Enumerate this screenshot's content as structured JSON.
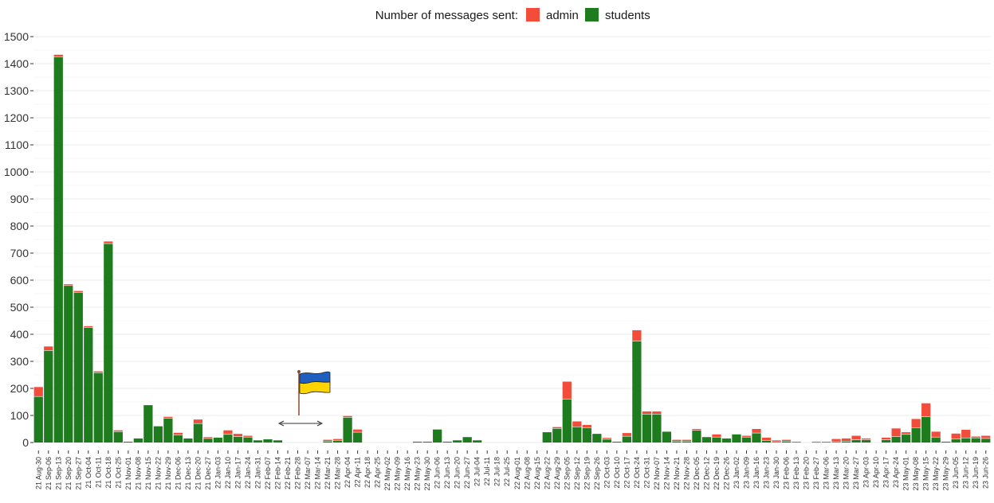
{
  "chart_data": {
    "type": "bar",
    "stacked": true,
    "legend_title": "Number of messages sent:",
    "legend_position": "top",
    "ylim": [
      0,
      1500
    ],
    "yticks": [
      0,
      100,
      200,
      300,
      400,
      500,
      600,
      700,
      800,
      900,
      1000,
      1100,
      1200,
      1300,
      1400,
      1500
    ],
    "colors": {
      "admin": "#f44c3a",
      "students": "#1e7b1e"
    },
    "annotation_icon": "ukraine-flag-icon",
    "categories": [
      "21 Aug-30",
      "21 Sep-06",
      "21 Sep-13",
      "21 Sep-20",
      "21 Sep-27",
      "21 Oct-04",
      "21 Oct-11",
      "21 Oct-18",
      "21 Oct-25",
      "21 Nov-01",
      "21 Nov-08",
      "21 Nov-15",
      "21 Nov-22",
      "21 Nov-29",
      "21 Dec-06",
      "21 Dec-13",
      "21 Dec-20",
      "21 Dec-27",
      "22 Jan-03",
      "22 Jan-10",
      "22 Jan-17",
      "22 Jan-24",
      "22 Jan-31",
      "22 Feb-07",
      "22 Feb-14",
      "22 Feb-21",
      "22 Feb-28",
      "22 Mar-07",
      "22 Mar-14",
      "22 Mar-21",
      "22 Mar-28",
      "22 Apr-04",
      "22 Apr-11",
      "22 Apr-18",
      "22 Apr-25",
      "22 May-02",
      "22 May-09",
      "22 May-16",
      "22 May-23",
      "22 May-30",
      "22 Jun-06",
      "22 Jun-13",
      "22 Jun-20",
      "22 Jun-27",
      "22 Jul-04",
      "22 Jul-11",
      "22 Jul-18",
      "22 Jul-25",
      "22 Aug-01",
      "22 Aug-08",
      "22 Aug-15",
      "22 Aug-22",
      "22 Aug-29",
      "22 Sep-05",
      "22 Sep-12",
      "22 Sep-19",
      "22 Sep-26",
      "22 Oct-03",
      "22 Oct-10",
      "22 Oct-17",
      "22 Oct-24",
      "22 Oct-31",
      "22 Nov-07",
      "22 Nov-14",
      "22 Nov-21",
      "22 Nov-28",
      "22 Dec-05",
      "22 Dec-12",
      "22 Dec-19",
      "22 Dec-26",
      "23 Jan-02",
      "23 Jan-09",
      "23 Jan-16",
      "23 Jan-23",
      "23 Jan-30",
      "23 Feb-06",
      "23 Feb-13",
      "23 Feb-20",
      "23 Feb-27",
      "23 Mar-06",
      "23 Mar-13",
      "23 Mar-20",
      "23 Mar-27",
      "23 Apr-03",
      "23 Apr-10",
      "23 Apr-17",
      "23 Apr-24",
      "23 May-01",
      "23 May-08",
      "23 May-15",
      "23 May-22",
      "23 May-29",
      "23 Jun-05",
      "23 Jun-12",
      "23 Jun-19",
      "23 Jun-26"
    ],
    "series": [
      {
        "name": "admin",
        "values": [
          35,
          15,
          8,
          5,
          5,
          5,
          5,
          8,
          5,
          0,
          0,
          0,
          0,
          5,
          8,
          0,
          15,
          5,
          0,
          15,
          10,
          5,
          0,
          0,
          0,
          0,
          0,
          0,
          0,
          5,
          5,
          5,
          10,
          0,
          0,
          0,
          0,
          0,
          0,
          0,
          0,
          0,
          0,
          0,
          0,
          0,
          0,
          0,
          0,
          0,
          0,
          0,
          5,
          65,
          20,
          10,
          0,
          5,
          0,
          12,
          40,
          10,
          10,
          0,
          5,
          5,
          5,
          0,
          10,
          0,
          0,
          5,
          15,
          10,
          5,
          5,
          3,
          0,
          3,
          3,
          10,
          10,
          15,
          5,
          0,
          8,
          30,
          8,
          32,
          50,
          20,
          0,
          20,
          30,
          5,
          10
        ]
      },
      {
        "name": "students",
        "values": [
          170,
          340,
          1425,
          580,
          555,
          425,
          258,
          735,
          40,
          3,
          15,
          138,
          60,
          90,
          28,
          15,
          70,
          15,
          18,
          30,
          22,
          20,
          8,
          12,
          8,
          0,
          0,
          0,
          0,
          5,
          8,
          93,
          38,
          0,
          0,
          0,
          0,
          0,
          3,
          3,
          48,
          3,
          8,
          20,
          8,
          0,
          0,
          0,
          0,
          0,
          0,
          38,
          52,
          160,
          58,
          55,
          32,
          12,
          3,
          23,
          375,
          105,
          105,
          40,
          5,
          5,
          45,
          20,
          20,
          15,
          30,
          20,
          35,
          8,
          3,
          5,
          0,
          0,
          0,
          0,
          3,
          5,
          10,
          10,
          0,
          10,
          22,
          30,
          55,
          95,
          20,
          3,
          13,
          17,
          17,
          15
        ]
      }
    ]
  }
}
